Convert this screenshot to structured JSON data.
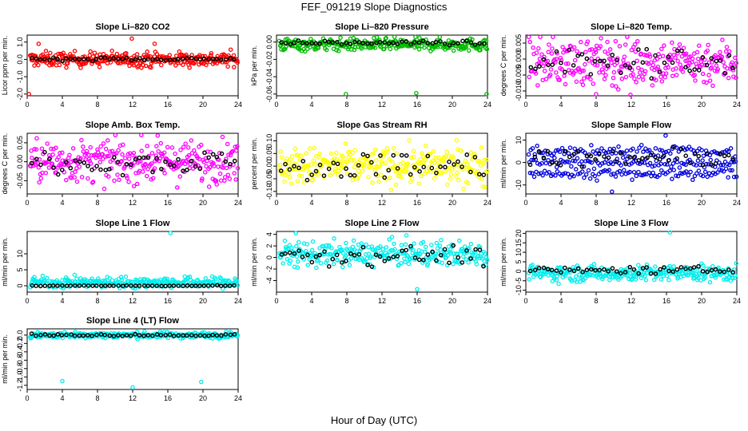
{
  "title": "FEF_091219  Slope Diagnostics",
  "xlabel": "Hour of Day (UTC)",
  "chart_data": [
    {
      "type": "scatter",
      "title": "Slope Li–820 CO2",
      "ylabel": "Licor ppm per min.",
      "color": "#ff0000",
      "xlim": [
        0,
        24
      ],
      "ylim": [
        -2.1,
        1.4
      ],
      "xticks": [
        0,
        4,
        8,
        12,
        16,
        20,
        24
      ],
      "yticks": [
        -2.0,
        -1.0,
        0.0,
        1.0
      ],
      "ytick_labels": [
        "-2.0",
        "-1.0",
        "0.0",
        "1.0"
      ],
      "series": [
        {
          "role": "interval",
          "center": 0.0,
          "spread": 0.35
        },
        {
          "role": "hourly",
          "center": 0.02,
          "spread": 0.08
        }
      ],
      "outliers": [
        [
          0.2,
          -2.0
        ],
        [
          1.3,
          0.9
        ],
        [
          11.9,
          1.2
        ],
        [
          14.5,
          0.9
        ]
      ]
    },
    {
      "type": "scatter",
      "title": "Slope Li–820 Pressure",
      "ylabel": "kPa per min.",
      "color": "#00bb00",
      "xlim": [
        0,
        24
      ],
      "ylim": [
        -0.062,
        0.008
      ],
      "xticks": [
        0,
        4,
        8,
        12,
        16,
        20,
        24
      ],
      "yticks": [
        -0.06,
        -0.04,
        -0.02,
        0.0
      ],
      "ytick_labels": [
        "-0.06",
        "-0.04",
        "-0.02",
        "0.00"
      ],
      "series": [
        {
          "role": "interval",
          "center": -0.003,
          "spread": 0.006
        },
        {
          "role": "hourly",
          "center": -0.001,
          "spread": 0.002
        }
      ],
      "outliers": [
        [
          7.9,
          -0.06
        ],
        [
          15.9,
          -0.059
        ],
        [
          23.9,
          -0.06
        ]
      ]
    },
    {
      "type": "scatter",
      "title": "Slope Li–820 Temp.",
      "ylabel": "degrees C per min.",
      "color": "#ff00ff",
      "xlim": [
        0,
        24
      ],
      "ylim": [
        -0.0115,
        0.0075
      ],
      "xticks": [
        0,
        4,
        8,
        12,
        16,
        20,
        24
      ],
      "yticks": [
        -0.01,
        -0.005,
        0.0,
        0.005
      ],
      "ytick_labels": [
        "-0.010",
        "-0.005",
        "0.000",
        "0.005"
      ],
      "series": [
        {
          "role": "interval",
          "center": -0.001,
          "spread": 0.006
        },
        {
          "role": "hourly",
          "center": -0.001,
          "spread": 0.004
        }
      ],
      "outliers": [
        [
          8.0,
          -0.011
        ],
        [
          11.9,
          -0.0112
        ]
      ]
    },
    {
      "type": "scatter",
      "title": "Slope Amb. Box Temp.",
      "ylabel": "degrees C per min.",
      "color": "#ff00ff",
      "xlim": [
        0,
        24
      ],
      "ylim": [
        -0.085,
        0.075
      ],
      "xticks": [
        0,
        4,
        8,
        12,
        16,
        20,
        24
      ],
      "yticks": [
        -0.05,
        0.0,
        0.05
      ],
      "ytick_labels": [
        "-0.05",
        "0.00",
        "0.05"
      ],
      "series": [
        {
          "role": "interval",
          "center": 0.0,
          "spread": 0.045
        },
        {
          "role": "hourly",
          "center": 0.0,
          "spread": 0.025
        }
      ],
      "outliers": []
    },
    {
      "type": "scatter",
      "title": "Slope Gas Stream RH",
      "ylabel": "percent per min.",
      "color": "#ffff00",
      "xlim": [
        0,
        24
      ],
      "ylim": [
        -0.11,
        0.13
      ],
      "xticks": [
        0,
        4,
        8,
        12,
        16,
        20,
        24
      ],
      "yticks": [
        -0.1,
        -0.05,
        0.0,
        0.05,
        0.1
      ],
      "ytick_labels": [
        "-0.10",
        "-0.05",
        "0.00",
        "0.05",
        "0.10"
      ],
      "series": [
        {
          "role": "interval",
          "center": 0.0,
          "spread": 0.06
        },
        {
          "role": "hourly",
          "center": 0.0,
          "spread": 0.045
        }
      ],
      "outliers": []
    },
    {
      "type": "scatter",
      "title": "Slope Sample Flow",
      "ylabel": "ml/min per min.",
      "color": "#0000dd",
      "xlim": [
        0,
        24
      ],
      "ylim": [
        -14,
        13
      ],
      "xticks": [
        0,
        4,
        8,
        12,
        16,
        20,
        24
      ],
      "yticks": [
        -10,
        0,
        10
      ],
      "ytick_labels": [
        "-10",
        "0",
        "10"
      ],
      "series": [
        {
          "role": "interval_bands",
          "bands": [
            5,
            0,
            -5
          ]
        },
        {
          "role": "hourly",
          "center": 2.0,
          "spread": 3.0
        }
      ],
      "outliers": [
        [
          15.9,
          12.0
        ],
        [
          9.8,
          -13.0
        ]
      ]
    },
    {
      "type": "scatter",
      "title": "Slope Line 1 Flow",
      "ylabel": "ml/min per min.",
      "color": "#00eeee",
      "xlim": [
        0,
        24
      ],
      "ylim": [
        -2,
        17
      ],
      "xticks": [
        0,
        4,
        8,
        12,
        16,
        20,
        24
      ],
      "yticks": [
        0,
        5,
        10
      ],
      "ytick_labels": [
        "0",
        "5",
        "10"
      ],
      "series": [
        {
          "role": "interval",
          "center": 1.0,
          "spread": 1.4
        },
        {
          "role": "hourly",
          "center": 0.0,
          "spread": 0.1
        }
      ],
      "outliers": [
        [
          16.3,
          16.5
        ]
      ]
    },
    {
      "type": "scatter",
      "title": "Slope Line 2 Flow",
      "ylabel": "ml/min per min.",
      "color": "#00eeee",
      "xlim": [
        0,
        24
      ],
      "ylim": [
        -6,
        4.5
      ],
      "xticks": [
        0,
        4,
        8,
        12,
        16,
        20,
        24
      ],
      "yticks": [
        -4,
        -2,
        0,
        2,
        4
      ],
      "ytick_labels": [
        "-4",
        "-2",
        "0",
        "2",
        "4"
      ],
      "series": [
        {
          "role": "interval",
          "center": 0.6,
          "spread": 1.8
        },
        {
          "role": "hourly",
          "center": 0.4,
          "spread": 1.4
        }
      ],
      "outliers": [
        [
          2.2,
          4.2
        ],
        [
          16.0,
          -5.5
        ]
      ]
    },
    {
      "type": "scatter",
      "title": "Slope Line 3 Flow",
      "ylabel": "ml/min per min.",
      "color": "#00eeee",
      "xlim": [
        0,
        24
      ],
      "ylim": [
        -11,
        21
      ],
      "xticks": [
        0,
        4,
        8,
        12,
        16,
        20,
        24
      ],
      "yticks": [
        -10,
        -5,
        0,
        5,
        10,
        15,
        20
      ],
      "ytick_labels": [
        "-10",
        "-5",
        "0",
        "5",
        "10",
        "15",
        "20"
      ],
      "series": [
        {
          "role": "interval",
          "center": -1.0,
          "spread": 3.5
        },
        {
          "role": "hourly",
          "center": 0.5,
          "spread": 1.5
        }
      ],
      "outliers": [
        [
          16.4,
          20.5
        ]
      ]
    },
    {
      "type": "scatter",
      "title": "Slope Line 4 (LT) Flow",
      "ylabel": "ml/min per min.",
      "color": "#00eeee",
      "xlim": [
        0,
        24
      ],
      "ylim": [
        -1.3,
        0.15
      ],
      "xticks": [
        0,
        4,
        8,
        12,
        16,
        20,
        24
      ],
      "yticks": [
        -1.2,
        -1.0,
        -0.8,
        -0.6,
        -0.4,
        -0.2,
        0.0
      ],
      "ytick_labels": [
        "-1.2",
        "-1.0",
        "-0.8",
        "-0.6",
        "-0.4",
        "-0.2",
        "0.0"
      ],
      "series": [
        {
          "role": "interval",
          "center": 0.0,
          "spread": 0.06
        },
        {
          "role": "hourly",
          "center": 0.0,
          "spread": 0.02
        }
      ],
      "outliers": [
        [
          4.0,
          -1.1
        ],
        [
          12.0,
          -1.25
        ],
        [
          19.8,
          -1.12
        ]
      ]
    }
  ]
}
